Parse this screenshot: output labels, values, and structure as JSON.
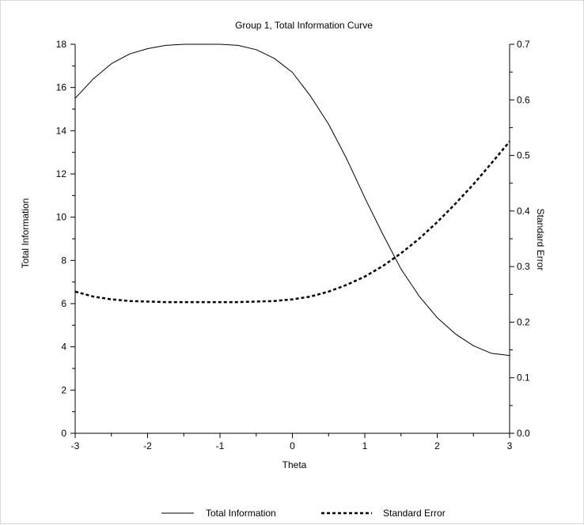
{
  "chart_data": {
    "type": "line",
    "title": "Group 1, Total Information Curve",
    "xlabel": "Theta",
    "ylabel": "Total Information",
    "y2label": "Standard Error",
    "xlim": [
      -3,
      3
    ],
    "ylim": [
      0,
      18
    ],
    "y2lim": [
      0,
      0.7
    ],
    "x_major_ticks": [
      -3,
      -2,
      -1,
      0,
      1,
      2,
      3
    ],
    "x_minor_ticks": [
      -2.5,
      -1.5,
      -0.5,
      0.5,
      1.5,
      2.5
    ],
    "y_major_ticks": [
      0,
      2,
      4,
      6,
      8,
      10,
      12,
      14,
      16,
      18
    ],
    "y_minor_ticks": [
      1,
      3,
      5,
      7,
      9,
      11,
      13,
      15,
      17
    ],
    "y2_major_ticks": [
      0,
      0.1,
      0.2,
      0.3,
      0.4,
      0.5,
      0.6,
      0.7
    ],
    "y2_minor_ticks": [
      0.05,
      0.15,
      0.25,
      0.35,
      0.45,
      0.55,
      0.65
    ],
    "x_tick_labels": [
      "-3",
      "-2",
      "-1",
      "0",
      "1",
      "2",
      "3"
    ],
    "y_tick_labels": [
      "0",
      "2",
      "4",
      "6",
      "8",
      "10",
      "12",
      "14",
      "16",
      "18"
    ],
    "y2_tick_labels": [
      "0.0",
      "0.1",
      "0.2",
      "0.3",
      "0.4",
      "0.5",
      "0.6",
      "0.7"
    ],
    "grid": false,
    "legend_position": "bottom",
    "series": [
      {
        "name": "Total Information",
        "axis": "left",
        "style": "solid",
        "color": "#000000",
        "x": [
          -3.0,
          -2.75,
          -2.5,
          -2.25,
          -2.0,
          -1.75,
          -1.5,
          -1.25,
          -1.0,
          -0.75,
          -0.5,
          -0.25,
          0.0,
          0.25,
          0.5,
          0.75,
          1.0,
          1.25,
          1.5,
          1.75,
          2.0,
          2.25,
          2.5,
          2.75,
          3.0
        ],
        "y": [
          15.5,
          16.4,
          17.1,
          17.55,
          17.8,
          17.95,
          18.0,
          18.0,
          18.0,
          17.95,
          17.75,
          17.35,
          16.7,
          15.6,
          14.3,
          12.7,
          10.9,
          9.2,
          7.6,
          6.35,
          5.35,
          4.6,
          4.05,
          3.7,
          3.6
        ]
      },
      {
        "name": "Standard Error",
        "axis": "right",
        "style": "dashed",
        "color": "#000000",
        "x": [
          -3.0,
          -2.75,
          -2.5,
          -2.25,
          -2.0,
          -1.75,
          -1.5,
          -1.25,
          -1.0,
          -0.75,
          -0.5,
          -0.25,
          0.0,
          0.25,
          0.5,
          0.75,
          1.0,
          1.25,
          1.5,
          1.75,
          2.0,
          2.25,
          2.5,
          2.75,
          3.0
        ],
        "y": [
          0.255,
          0.246,
          0.241,
          0.238,
          0.237,
          0.236,
          0.236,
          0.236,
          0.236,
          0.236,
          0.237,
          0.238,
          0.241,
          0.246,
          0.255,
          0.267,
          0.282,
          0.301,
          0.324,
          0.35,
          0.38,
          0.413,
          0.448,
          0.486,
          0.525
        ]
      }
    ]
  }
}
